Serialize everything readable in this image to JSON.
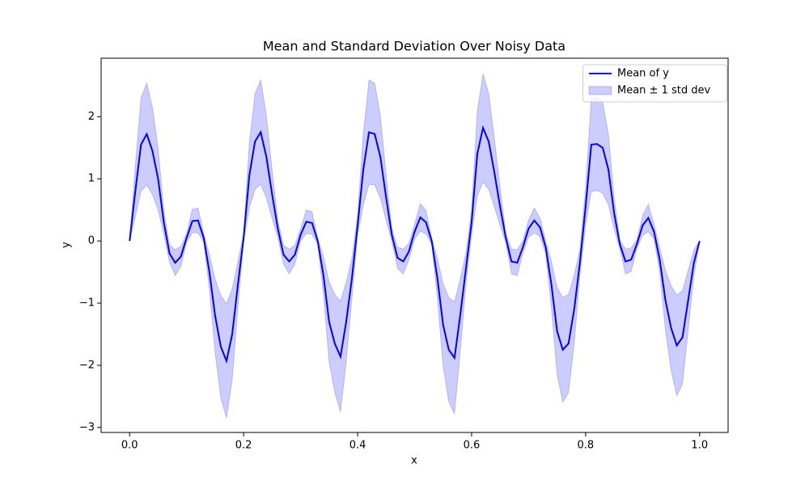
{
  "chart_data": {
    "type": "line_band",
    "title": "Mean and Standard Deviation Over Noisy Data",
    "xlabel": "x",
    "ylabel": "y",
    "x": [
      0,
      0.01,
      0.02,
      0.03,
      0.04,
      0.05,
      0.06,
      0.07,
      0.08,
      0.09,
      0.1,
      0.11,
      0.12,
      0.13,
      0.14,
      0.15,
      0.16,
      0.17,
      0.18,
      0.19,
      0.2,
      0.21,
      0.22,
      0.23,
      0.24,
      0.25,
      0.26,
      0.27,
      0.28,
      0.29,
      0.3,
      0.31,
      0.32,
      0.33,
      0.34,
      0.35,
      0.36,
      0.37,
      0.38,
      0.39,
      0.4,
      0.41,
      0.42,
      0.43,
      0.44,
      0.45,
      0.46,
      0.47,
      0.48,
      0.49,
      0.5,
      0.51,
      0.52,
      0.53,
      0.54,
      0.55,
      0.56,
      0.57,
      0.58,
      0.59,
      0.6,
      0.61,
      0.62,
      0.63,
      0.64,
      0.65,
      0.66,
      0.67,
      0.68,
      0.69,
      0.7,
      0.71,
      0.72,
      0.73,
      0.74,
      0.75,
      0.76,
      0.77,
      0.78,
      0.79,
      0.8,
      0.81,
      0.82,
      0.83,
      0.84,
      0.85,
      0.86,
      0.87,
      0.88,
      0.89,
      0.9,
      0.91,
      0.92,
      0.93,
      0.94,
      0.95,
      0.96,
      0.97,
      0.98,
      0.99,
      1.0
    ],
    "series": [
      {
        "name": "Mean of y",
        "color": "#0000ff",
        "values": [
          0,
          0.8,
          1.55,
          1.72,
          1.45,
          1.0,
          0.3,
          -0.2,
          -0.35,
          -0.25,
          0.05,
          0.32,
          0.33,
          0.05,
          -0.5,
          -1.2,
          -1.7,
          -1.93,
          -1.5,
          -0.7,
          0.05,
          1.05,
          1.6,
          1.75,
          1.35,
          0.75,
          0.2,
          -0.22,
          -0.33,
          -0.22,
          0.1,
          0.31,
          0.29,
          0.0,
          -0.55,
          -1.3,
          -1.65,
          -1.86,
          -1.3,
          -0.6,
          0.25,
          1.15,
          1.75,
          1.72,
          1.35,
          0.7,
          0.1,
          -0.27,
          -0.33,
          -0.17,
          0.15,
          0.38,
          0.3,
          0.0,
          -0.6,
          -1.35,
          -1.75,
          -1.88,
          -1.2,
          -0.45,
          0.3,
          1.4,
          1.82,
          1.6,
          1.1,
          0.55,
          0.05,
          -0.33,
          -0.35,
          -0.1,
          0.2,
          0.33,
          0.22,
          -0.1,
          -0.7,
          -1.45,
          -1.75,
          -1.65,
          -1.1,
          -0.35,
          0.55,
          1.55,
          1.56,
          1.5,
          1.15,
          0.45,
          -0.05,
          -0.33,
          -0.3,
          -0.05,
          0.25,
          0.37,
          0.15,
          -0.3,
          -0.95,
          -1.4,
          -1.68,
          -1.55,
          -0.95,
          -0.35,
          0
        ]
      }
    ],
    "band": {
      "name": "Mean ± 1 std dev",
      "color": "#0000ff",
      "upper": [
        0,
        1.21,
        2.3,
        2.54,
        2.15,
        1.5,
        0.49,
        -0.06,
        -0.14,
        -0.09,
        0.12,
        0.51,
        0.53,
        0.12,
        -0.22,
        -0.61,
        -0.88,
        -1.01,
        -0.77,
        -0.33,
        0.12,
        1.57,
        2.37,
        2.59,
        2.01,
        1.14,
        0.34,
        -0.07,
        -0.13,
        -0.07,
        0.2,
        0.5,
        0.47,
        0.05,
        -0.25,
        -0.66,
        -0.86,
        -0.97,
        -0.66,
        -0.28,
        0.41,
        1.72,
        2.59,
        2.54,
        2.01,
        1.07,
        0.2,
        -0.1,
        -0.13,
        -0.04,
        0.27,
        0.6,
        0.49,
        0.05,
        -0.28,
        -0.69,
        -0.91,
        -0.98,
        -0.61,
        -0.2,
        0.49,
        2.08,
        2.69,
        2.37,
        1.65,
        0.85,
        0.12,
        -0.13,
        -0.14,
        0,
        0.34,
        0.53,
        0.37,
        0,
        -0.33,
        -0.75,
        -0.91,
        -0.86,
        -0.55,
        -0.14,
        0.85,
        2.3,
        2.31,
        2.23,
        1.72,
        0.7,
        0.02,
        -0.13,
        -0.11,
        0.02,
        0.41,
        0.59,
        0.27,
        -0.11,
        -0.47,
        -0.72,
        -0.87,
        -0.8,
        -0.47,
        -0.14,
        0
      ],
      "lower": [
        0,
        0.39,
        0.8,
        0.9,
        0.75,
        0.5,
        0.11,
        -0.34,
        -0.56,
        -0.41,
        -0.02,
        0.13,
        0.13,
        -0.02,
        -0.78,
        -1.79,
        -2.52,
        -2.85,
        -2.23,
        -1.07,
        -0.02,
        0.53,
        0.83,
        0.91,
        0.69,
        0.36,
        0.06,
        -0.37,
        -0.53,
        -0.37,
        0,
        0.12,
        0.11,
        -0.05,
        -0.85,
        -1.94,
        -2.44,
        -2.75,
        -1.94,
        -0.92,
        0.09,
        0.58,
        0.91,
        0.9,
        0.69,
        0.33,
        0,
        -0.44,
        -0.53,
        -0.3,
        0.03,
        0.16,
        0.11,
        -0.05,
        -0.92,
        -2.01,
        -2.59,
        -2.78,
        -1.79,
        -0.7,
        0.11,
        0.72,
        0.95,
        0.83,
        0.55,
        0.25,
        -0.02,
        -0.53,
        -0.56,
        -0.2,
        0.06,
        0.13,
        0.07,
        -0.2,
        -1.07,
        -2.15,
        -2.59,
        -2.44,
        -1.65,
        -0.56,
        0.25,
        0.8,
        0.81,
        0.77,
        0.58,
        0.2,
        -0.12,
        -0.53,
        -0.49,
        -0.12,
        0.09,
        0.15,
        0.03,
        -0.49,
        -1.43,
        -2.08,
        -2.49,
        -2.3,
        -1.43,
        -0.56,
        0
      ]
    },
    "xlim": [
      -0.05,
      1.05
    ],
    "ylim": [
      -3.08,
      2.94
    ],
    "xticks": [
      {
        "value": 0,
        "label": "0.0"
      },
      {
        "value": 0.2,
        "label": "0.2"
      },
      {
        "value": 0.4,
        "label": "0.4"
      },
      {
        "value": 0.6,
        "label": "0.6"
      },
      {
        "value": 0.8,
        "label": "0.8"
      },
      {
        "value": 1,
        "label": "1.0"
      }
    ],
    "yticks": [
      {
        "value": -3,
        "label": "−3"
      },
      {
        "value": -2,
        "label": "−2"
      },
      {
        "value": -1,
        "label": "−1"
      },
      0,
      1,
      2
    ],
    "legend": "upper right"
  }
}
